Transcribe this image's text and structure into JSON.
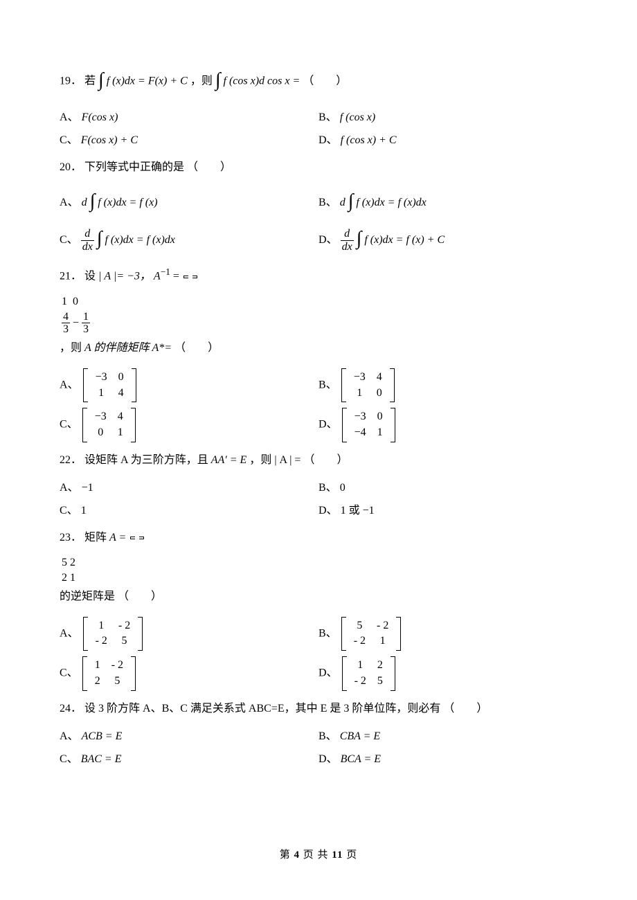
{
  "page": {
    "current": "4",
    "total": "11",
    "prefix": "第 ",
    "mid": " 页 共 ",
    "suffix": " 页"
  },
  "labels": {
    "A": "A、",
    "B": "B、",
    "C": "C、",
    "D": "D、"
  },
  "common": {
    "blank": "（　　）"
  },
  "q19": {
    "num": "19．",
    "s1": "若",
    "eq1_l": "f (x)dx",
    "eq1_r": "= F(x) + C",
    "s2": "，则",
    "eq2_l": "f (cos x)d cos x",
    "eq2_r": "=",
    "A": "F(cos x)",
    "B": "f (cos x)",
    "C": "F(cos x) + C",
    "D": "f (cos x) + C"
  },
  "q20": {
    "num": "20．",
    "stem": "下列等式中正确的是",
    "A_l": "d",
    "A_m": "f (x)dx",
    "A_r": "= f (x)",
    "B_l": "d",
    "B_m": "f (x)dx",
    "B_r": "= f (x)dx",
    "C_fn": "d",
    "C_fd": "dx",
    "C_m": "f (x)dx",
    "C_r": "= f (x)dx",
    "D_fn": "d",
    "D_fd": "dx",
    "D_m": "f (x)dx",
    "D_r": "= f (x) + C"
  },
  "q21": {
    "num": "21．",
    "s1": "设",
    "det": "| A |= −3，",
    "s2": "A",
    "sup": "−1",
    "eq": " =",
    "m_r1c1": "1",
    "m_r1c2": "0",
    "m_r2c1n": "4",
    "m_r2c1d": "3",
    "m_r2c2pre": "−",
    "m_r2c2n": "1",
    "m_r2c2d": "3",
    "s3": "，则 ",
    "s4": "A 的伴随矩阵 A*=",
    "A": [
      [
        "−3",
        "0"
      ],
      [
        "1",
        "4"
      ]
    ],
    "B": [
      [
        "−3",
        "4"
      ],
      [
        "1",
        "0"
      ]
    ],
    "C": [
      [
        "−3",
        "4"
      ],
      [
        "0",
        "1"
      ]
    ],
    "D": [
      [
        "−3",
        "0"
      ],
      [
        "−4",
        "1"
      ]
    ]
  },
  "q22": {
    "num": "22．",
    "stem_a": "设矩阵 A 为三阶方阵，且 ",
    "eq1": "AA′ = E",
    "stem_b": "，则",
    "eq2": "| A |",
    "stem_c": "=",
    "A": "−1",
    "B": "0",
    "C": "1",
    "D": "1 或 −1"
  },
  "q23": {
    "num": "23．",
    "s1": "矩阵 ",
    "s2": "A =",
    "M": [
      [
        "5",
        "2"
      ],
      [
        "2",
        "1"
      ]
    ],
    "s3": " 的逆矩阵是",
    "A": [
      [
        "1",
        "- 2"
      ],
      [
        "- 2",
        "5"
      ]
    ],
    "B": [
      [
        "5",
        "- 2"
      ],
      [
        "- 2",
        "1"
      ]
    ],
    "C": [
      [
        "1",
        "- 2"
      ],
      [
        "2",
        "5"
      ]
    ],
    "D": [
      [
        "1",
        "2"
      ],
      [
        "- 2",
        "5"
      ]
    ]
  },
  "q24": {
    "num": "24．",
    "stem": "设 3 阶方阵 A、B、C 满足关系式 ABC=E，其中 E 是 3 阶单位阵，则必有",
    "A": "ACB = E",
    "B": "CBA = E",
    "C": "BAC = E",
    "D": "BCA = E"
  }
}
